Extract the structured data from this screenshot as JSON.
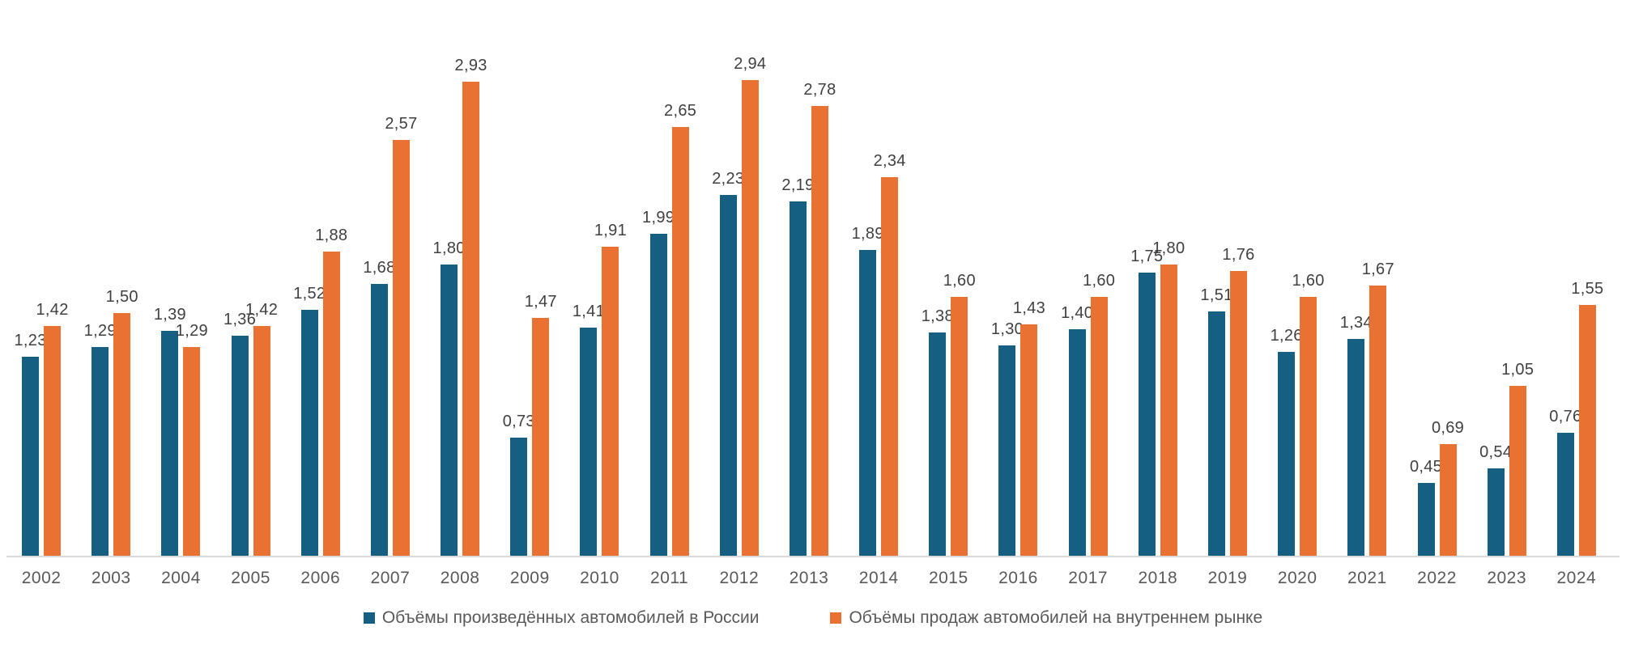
{
  "legend": {
    "items": [
      {
        "label": "Объёмы произведённых автомобилей в России",
        "color": "#156082"
      },
      {
        "label": "Объёмы продаж автомобилей на внутреннем рынке",
        "color": "#E97132"
      }
    ]
  },
  "chart_data": {
    "type": "bar",
    "title": "",
    "categories": [
      "2002",
      "2003",
      "2004",
      "2005",
      "2006",
      "2007",
      "2008",
      "2009",
      "2010",
      "2011",
      "2012",
      "2013",
      "2014",
      "2015",
      "2016",
      "2017",
      "2018",
      "2019",
      "2020",
      "2021",
      "2022",
      "2023",
      "2024"
    ],
    "series": [
      {
        "name": "Объёмы произведённых автомобилей в России",
        "color": "#156082",
        "values": [
          1.23,
          1.29,
          1.39,
          1.36,
          1.52,
          1.68,
          1.8,
          0.73,
          1.41,
          1.99,
          2.23,
          2.19,
          1.89,
          1.38,
          1.3,
          1.4,
          1.75,
          1.51,
          1.26,
          1.34,
          0.45,
          0.54,
          0.76
        ]
      },
      {
        "name": "Объёмы продаж автомобилей на внутреннем рынке",
        "color": "#E97132",
        "values": [
          1.42,
          1.5,
          1.29,
          1.42,
          1.88,
          2.57,
          2.93,
          1.47,
          1.91,
          2.65,
          2.94,
          2.78,
          2.34,
          1.6,
          1.43,
          1.6,
          1.8,
          1.76,
          1.6,
          1.67,
          0.69,
          1.05,
          1.55
        ]
      }
    ],
    "value_labels": {
      "visible": true,
      "decimals": 2,
      "decimal_separator": ",",
      "color": "#404040"
    },
    "xlabel": "",
    "ylabel": "",
    "ylim": [
      0,
      3.0
    ],
    "grid": false,
    "y_axis_visible": false,
    "legend_position": "bottom",
    "axis_line_color": "#D9D9D9",
    "tick_label_color": "#595959"
  }
}
